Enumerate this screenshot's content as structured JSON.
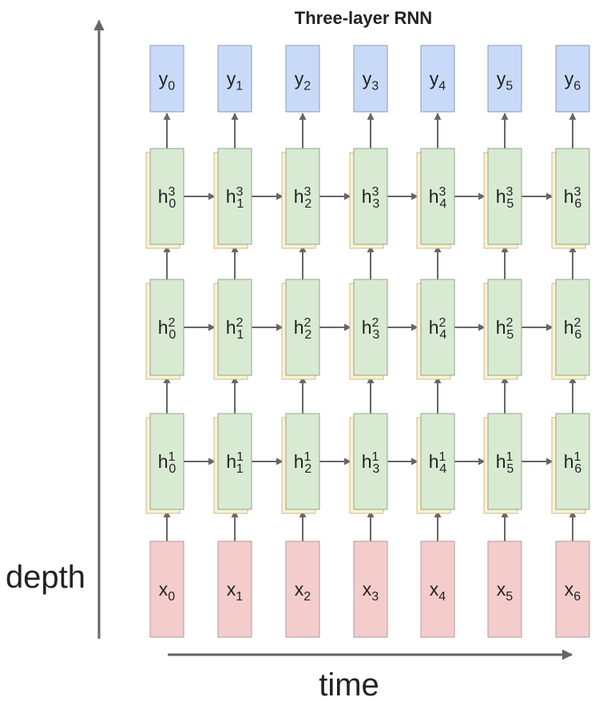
{
  "title": "Three-layer RNN",
  "axis_labels": {
    "depth": "depth",
    "time": "time"
  },
  "inputs": [
    "x0",
    "x1",
    "x2",
    "x3",
    "x4",
    "x5",
    "x6"
  ],
  "outputs": [
    "y0",
    "y1",
    "y2",
    "y3",
    "y4",
    "y5",
    "y6"
  ],
  "hidden_layers": [
    {
      "layer": "3",
      "cells": [
        "h30",
        "h31",
        "h32",
        "h33",
        "h34",
        "h35",
        "h36"
      ]
    },
    {
      "layer": "2",
      "cells": [
        "h20",
        "h21",
        "h22",
        "h23",
        "h24",
        "h25",
        "h26"
      ]
    },
    {
      "layer": "1",
      "cells": [
        "h10",
        "h11",
        "h12",
        "h13",
        "h14",
        "h15",
        "h16"
      ]
    }
  ],
  "colors": {
    "output": "#c9daf8",
    "output_border": "#8a9bb5",
    "hidden": "#d9ead3",
    "hidden_border": "#8fa78b",
    "hidden_shadow": "#fdf2d0",
    "hidden_shadow_border": "#c9bb94",
    "input": "#f4cccc",
    "input_border": "#b59a9a",
    "arrow": "#666666"
  }
}
